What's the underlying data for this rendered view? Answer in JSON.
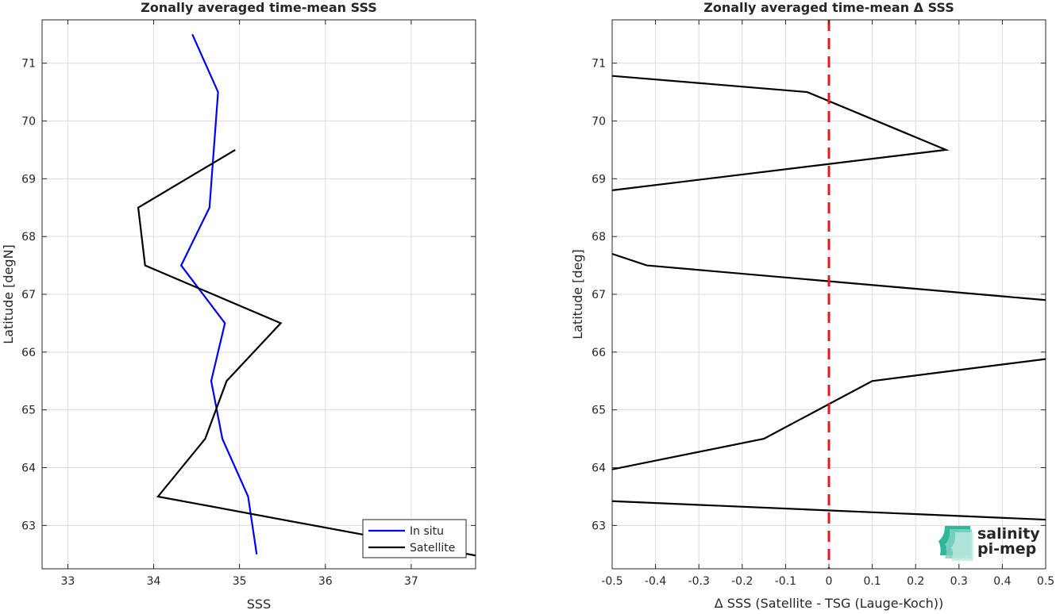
{
  "chart_data": [
    {
      "type": "line",
      "title": "Zonally averaged time-mean SSS",
      "xlabel": "SSS",
      "ylabel": "Latitude [degN]",
      "xlim": [
        32.7,
        37.75
      ],
      "ylim": [
        62.25,
        71.75
      ],
      "xticks": [
        33,
        34,
        35,
        36,
        37
      ],
      "yticks": [
        63,
        64,
        65,
        66,
        67,
        68,
        69,
        70,
        71
      ],
      "grid": true,
      "legend_position": "bottom-right",
      "series": [
        {
          "name": "In situ",
          "color": "#0000ff",
          "points": [
            {
              "x": 34.45,
              "y": 71.5
            },
            {
              "x": 34.75,
              "y": 70.5
            },
            {
              "x": 34.7,
              "y": 69.5
            },
            {
              "x": 34.65,
              "y": 68.5
            },
            {
              "x": 34.32,
              "y": 67.5
            },
            {
              "x": 34.83,
              "y": 66.5
            },
            {
              "x": 34.67,
              "y": 65.5
            },
            {
              "x": 34.8,
              "y": 64.5
            },
            {
              "x": 35.1,
              "y": 63.5
            },
            {
              "x": 35.2,
              "y": 62.5
            }
          ]
        },
        {
          "name": "Satellite",
          "color": "#000000",
          "points": [
            {
              "x": 34.95,
              "y": 69.5
            },
            {
              "x": 33.82,
              "y": 68.5
            },
            {
              "x": 33.9,
              "y": 67.5
            },
            {
              "x": 35.48,
              "y": 66.5
            },
            {
              "x": 34.85,
              "y": 65.5
            },
            {
              "x": 34.6,
              "y": 64.5
            },
            {
              "x": 34.05,
              "y": 63.5
            },
            {
              "x": 37.75,
              "y": 62.48
            }
          ]
        }
      ]
    },
    {
      "type": "line",
      "title": "Zonally averaged time-mean Δ SSS",
      "xlabel": "Δ SSS (Satellite - TSG (Lauge-Koch))",
      "ylabel": "Latitude [deg]",
      "xlim": [
        -0.5,
        0.5
      ],
      "ylim": [
        62.25,
        71.75
      ],
      "xticks": [
        -0.5,
        -0.4,
        -0.3,
        -0.2,
        -0.1,
        0,
        0.1,
        0.2,
        0.3,
        0.4,
        0.5
      ],
      "xtick_labels": [
        "-0.5",
        "-0.4",
        "-0.3",
        "-0.2",
        "-0.1",
        "0",
        "0.1",
        "0.2",
        "0.3",
        "0.4",
        "0.5"
      ],
      "yticks": [
        63,
        64,
        65,
        66,
        67,
        68,
        69,
        70,
        71
      ],
      "grid": true,
      "reference_line": {
        "x": 0,
        "color": "#e41a1c",
        "style": "dashed"
      },
      "series": [
        {
          "color": "#000000",
          "points": [
            {
              "x": -0.5,
              "y": 70.78
            },
            {
              "x": -0.05,
              "y": 70.5
            },
            {
              "x": 0.27,
              "y": 69.5
            },
            {
              "x": -0.5,
              "y": 68.8
            }
          ]
        },
        {
          "color": "#000000",
          "points": [
            {
              "x": -0.5,
              "y": 67.7
            },
            {
              "x": -0.42,
              "y": 67.5
            },
            {
              "x": 0.5,
              "y": 66.9
            }
          ]
        },
        {
          "color": "#000000",
          "points": [
            {
              "x": -0.5,
              "y": 63.97
            },
            {
              "x": -0.15,
              "y": 64.5
            },
            {
              "x": 0.1,
              "y": 65.5
            },
            {
              "x": 0.5,
              "y": 65.88
            }
          ]
        },
        {
          "color": "#000000",
          "points": [
            {
              "x": -0.5,
              "y": 63.42
            },
            {
              "x": 0.5,
              "y": 63.1
            }
          ]
        }
      ]
    }
  ],
  "logo": {
    "line1": "salinity",
    "line2": "pi-mep",
    "color": "#1aa78f"
  }
}
